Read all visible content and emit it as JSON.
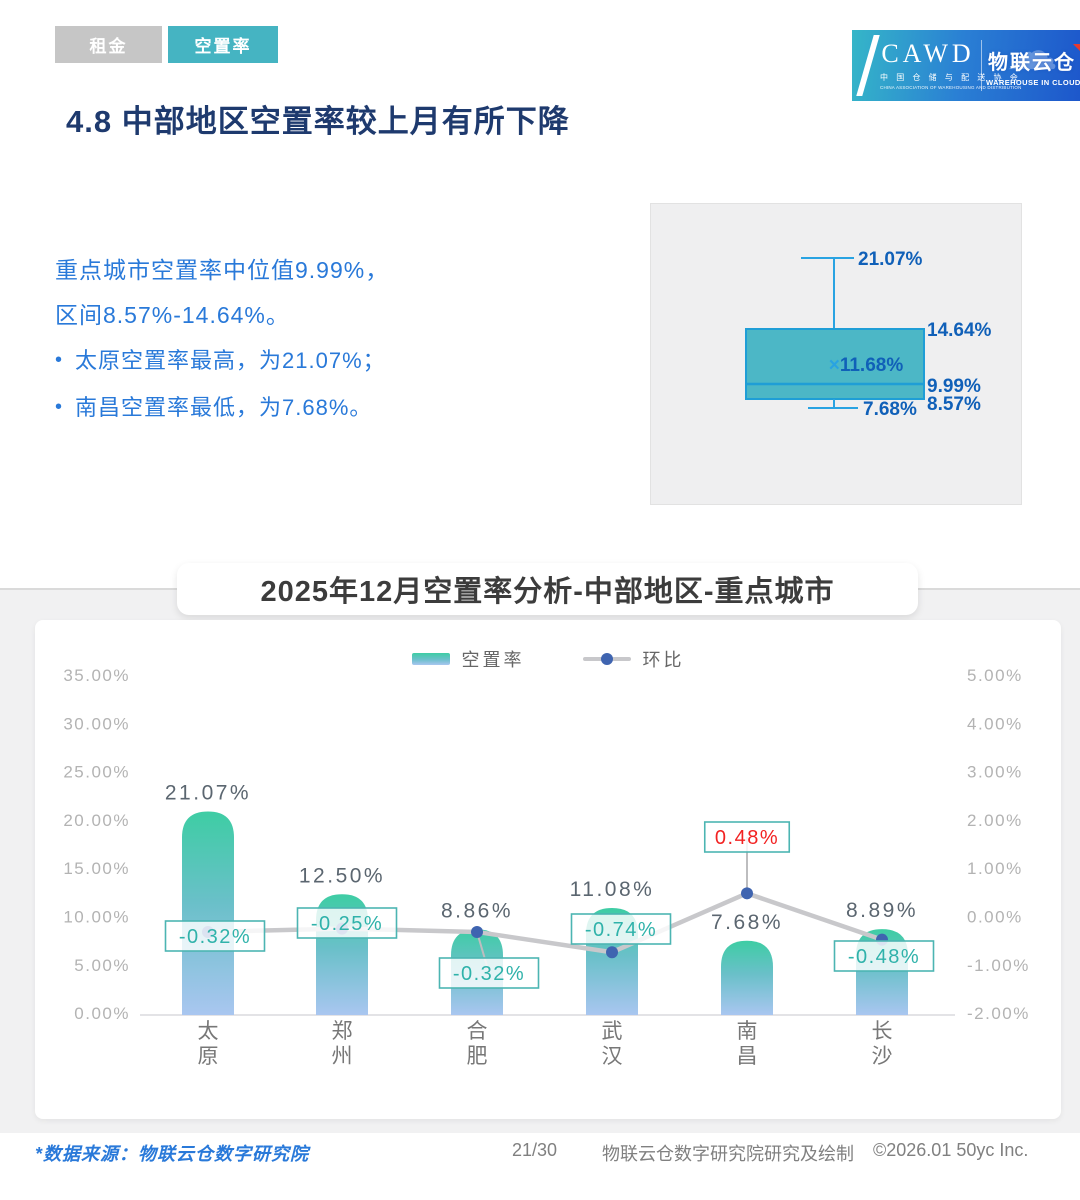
{
  "tabs": {
    "rent": "租金",
    "vacancy": "空置率"
  },
  "logo": {
    "cawd": "CAWD",
    "cawd_sub_cn": "中 国 仓 储 与 配 送 协 会",
    "cawd_sub_en": "CHINA ASSOCIATION OF WAREHOUSING AND DISTRIBUTION",
    "brand_cn": "物联云仓",
    "brand_en_words": [
      "WAREHOUSE",
      "IN",
      "CLOUD"
    ]
  },
  "page_title": "4.8 中部地区空置率较上月有所下降",
  "summary": {
    "line1": "重点城市空置率中位值9.99%，",
    "line2": "区间8.57%-14.64%。",
    "bullet1": "太原空置率最高，为21.07%；",
    "bullet2": "南昌空置率最低，为7.68%。"
  },
  "boxplot": {
    "max_label": "21.07%",
    "q3_label": "14.64%",
    "mean_mark": "×",
    "mean_label": "11.68%",
    "median_label": "9.99%",
    "q1_label": "8.57%",
    "min_label": "7.68%",
    "max": 21.07,
    "q3": 14.64,
    "mean": 11.68,
    "median": 9.99,
    "q1": 8.57,
    "min": 7.68
  },
  "chart_title": "2025年12月空置率分析-中部地区-重点城市",
  "chart_data": {
    "type": "bar+line",
    "categories": [
      "太原",
      "郑州",
      "合肥",
      "武汉",
      "南昌",
      "长沙"
    ],
    "series": [
      {
        "name": "空置率",
        "type": "bar",
        "axis": "left",
        "values": [
          21.07,
          12.5,
          8.86,
          11.08,
          7.68,
          8.89
        ],
        "labels": [
          "21.07%",
          "12.50%",
          "8.86%",
          "11.08%",
          "7.68%",
          "8.89%"
        ]
      },
      {
        "name": "环比",
        "type": "line",
        "axis": "right",
        "values": [
          -0.32,
          -0.25,
          -0.32,
          -0.74,
          0.48,
          -0.48
        ],
        "labels": [
          "-0.32%",
          "-0.25%",
          "-0.32%",
          "-0.74%",
          "0.48%",
          "-0.48%"
        ]
      }
    ],
    "left_axis": {
      "ticks": [
        "35.00%",
        "30.00%",
        "25.00%",
        "20.00%",
        "15.00%",
        "10.00%",
        "5.00%",
        "0.00%"
      ],
      "min": 0,
      "max": 35
    },
    "right_axis": {
      "ticks": [
        "5.00%",
        "4.00%",
        "3.00%",
        "2.00%",
        "1.00%",
        "0.00%",
        "-1.00%",
        "-2.00%"
      ],
      "min": -2,
      "max": 5
    },
    "grid": false,
    "legend_position": "top"
  },
  "colors": {
    "accent_teal": "#45b4c2",
    "bar_top": "#3ecda4",
    "bar_bottom": "#a9c6f0",
    "line_gray": "#c8c8cb",
    "dot_blue": "#3f64b0",
    "label_teal": "#2fb2aa",
    "label_red": "#f22222",
    "box_fill": "#4cb7c6",
    "box_stroke": "#1f9ed6",
    "blue_text": "#1060b8"
  },
  "footer": {
    "source": "*数据来源：物联云仓数字研究院",
    "page": "21/30",
    "credit": "物联云仓数字研究院研究及绘制",
    "copyright": "©2026.01 50yc Inc."
  }
}
